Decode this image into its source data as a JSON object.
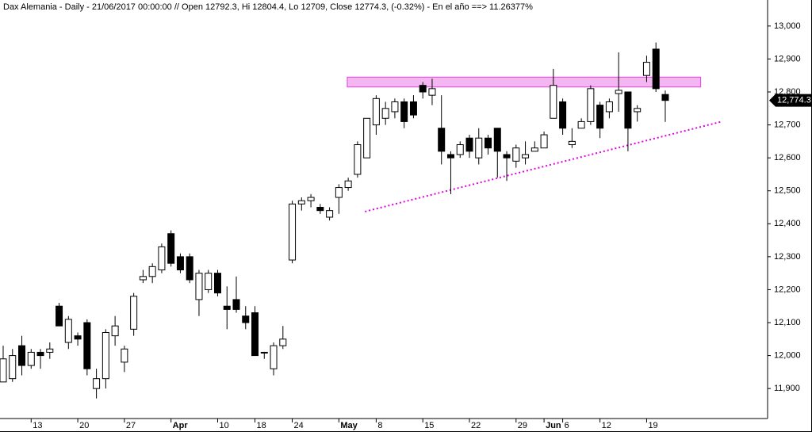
{
  "chart_data": {
    "type": "candlestick",
    "title": "Dax Alemania - Daily - 21/06/2017 00:00:00 // Open 12792.3, Hi 12804.4, Lo 12709, Close 12774.3, (-0.32%) - En el año ==> 11.26377%",
    "categories": [
      null,
      null,
      null,
      "13",
      null,
      null,
      null,
      null,
      "20",
      null,
      null,
      null,
      null,
      "27",
      null,
      null,
      null,
      null,
      "Apr",
      null,
      null,
      null,
      null,
      "10",
      null,
      null,
      null,
      "18",
      null,
      null,
      null,
      "24",
      null,
      null,
      null,
      null,
      "May",
      null,
      null,
      null,
      "8",
      null,
      null,
      null,
      null,
      "15",
      null,
      null,
      null,
      null,
      "22",
      null,
      null,
      null,
      null,
      "29",
      null,
      null,
      "Jun",
      null,
      "6",
      null,
      null,
      null,
      "12",
      null,
      null,
      null,
      null,
      "19",
      null,
      null
    ],
    "open": [
      11920,
      11930,
      12030,
      11970,
      12010,
      12010,
      12150,
      12040,
      12060,
      12100,
      11900,
      11930,
      12060,
      11980,
      12080,
      12230,
      12240,
      12260,
      12370,
      12300,
      12300,
      12170,
      12200,
      12250,
      12150,
      12170,
      12120,
      12130,
      12010,
      11960,
      12030,
      12290,
      12460,
      12470,
      12450,
      12420,
      12480,
      12510,
      12550,
      12600,
      12700,
      12720,
      12740,
      12770,
      12770,
      12820,
      12790,
      12690,
      12610,
      12610,
      12660,
      12600,
      12660,
      12690,
      12610,
      12590,
      12600,
      12620,
      12630,
      12720,
      12770,
      12640,
      12690,
      12710,
      12760,
      12740,
      12795,
      12800,
      12740,
      12850,
      12930,
      12792.3
    ],
    "close": [
      11990,
      12000,
      11970,
      12010,
      12000,
      12020,
      12090,
      12110,
      12050,
      11960,
      11930,
      12070,
      12090,
      12020,
      12180,
      12240,
      12270,
      12330,
      12280,
      12260,
      12230,
      12250,
      12250,
      12190,
      12140,
      12140,
      12100,
      12000,
      12010,
      12030,
      12050,
      12460,
      12470,
      12480,
      12440,
      12440,
      12510,
      12530,
      12640,
      12720,
      12780,
      12750,
      12770,
      12710,
      12730,
      12800,
      12810,
      12620,
      12600,
      12640,
      12620,
      12660,
      12630,
      12620,
      12600,
      12630,
      12610,
      12630,
      12670,
      12820,
      12690,
      12650,
      12710,
      12810,
      12690,
      12770,
      12805,
      12690,
      12750,
      12890,
      12810,
      12774.3
    ],
    "high": [
      12030,
      12020,
      12060,
      12020,
      12020,
      12040,
      12160,
      12120,
      12070,
      12110,
      11960,
      12080,
      12120,
      12030,
      12190,
      12260,
      12280,
      12340,
      12380,
      12310,
      12310,
      12260,
      12260,
      12260,
      12210,
      12240,
      12150,
      12150,
      12010,
      12040,
      12090,
      12470,
      12480,
      12490,
      12460,
      12450,
      12520,
      12540,
      12650,
      12720,
      12790,
      12770,
      12780,
      12780,
      12790,
      12830,
      12840,
      12790,
      12620,
      12650,
      12670,
      12690,
      12670,
      12690,
      12620,
      12640,
      12650,
      12650,
      12680,
      12870,
      12780,
      12690,
      12720,
      12820,
      12770,
      12780,
      12920,
      12800,
      12760,
      12910,
      12950,
      12804.4
    ],
    "low": [
      11920,
      11920,
      11940,
      11960,
      11960,
      11990,
      12090,
      12020,
      12030,
      11940,
      11870,
      11900,
      12030,
      11950,
      12060,
      12220,
      12220,
      12250,
      12270,
      12250,
      12220,
      12120,
      12190,
      12180,
      12080,
      12130,
      12080,
      12000,
      11990,
      11940,
      12020,
      12280,
      12440,
      12450,
      12430,
      12410,
      12430,
      12500,
      12540,
      12600,
      12670,
      12700,
      12720,
      12690,
      12720,
      12780,
      12760,
      12580,
      12490,
      12600,
      12600,
      12580,
      12610,
      12540,
      12530,
      12570,
      12580,
      12620,
      12630,
      12720,
      12670,
      12630,
      12690,
      12700,
      12660,
      12720,
      12740,
      12620,
      12710,
      12830,
      12800,
      12709
    ],
    "up_color": "#ffffff",
    "down_color": "#000000",
    "ylim": [
      11809,
      13079
    ],
    "yticks": [
      {
        "value": 11900,
        "label": "11,900"
      },
      {
        "value": 12000,
        "label": "12,000"
      },
      {
        "value": 12100,
        "label": "12,100"
      },
      {
        "value": 12200,
        "label": "12,200"
      },
      {
        "value": 12300,
        "label": "12,300"
      },
      {
        "value": 12400,
        "label": "12,400"
      },
      {
        "value": 12500,
        "label": "12,500"
      },
      {
        "value": 12600,
        "label": "12,600"
      },
      {
        "value": 12700,
        "label": "12,700"
      },
      {
        "value": 12800,
        "label": "12,800"
      },
      {
        "value": 12900,
        "label": "12,900"
      },
      {
        "value": 13000,
        "label": "13,000"
      }
    ],
    "last_price": {
      "value": 12774.3,
      "label": "12,774.3"
    },
    "zone": {
      "xlim": [
        36.9,
        74.8
      ],
      "ylim": [
        12815,
        12845
      ],
      "color": "#f4b6f0",
      "edge": "#e040e0"
    },
    "trendline": {
      "x": [
        38.8,
        76.9
      ],
      "y": [
        12437,
        12709
      ],
      "color": "#e000e0"
    }
  }
}
